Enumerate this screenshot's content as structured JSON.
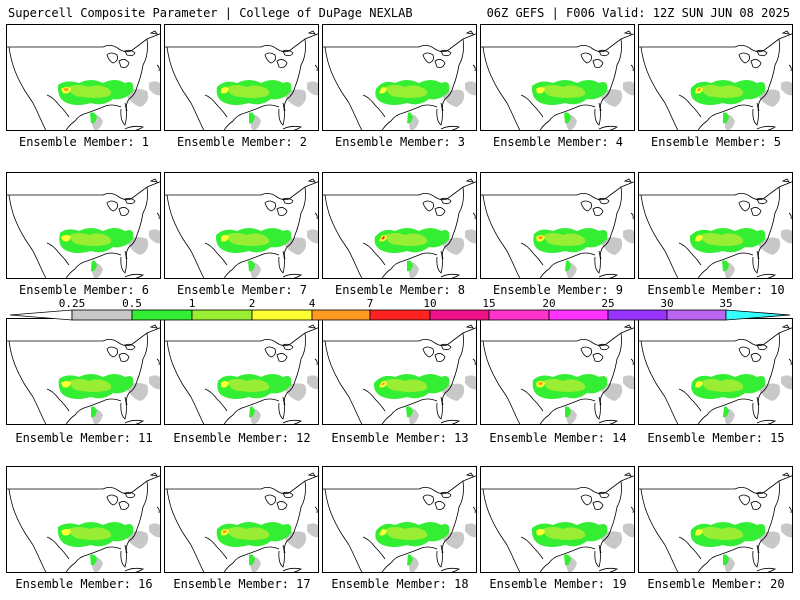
{
  "header": {
    "left": "Supercell Composite Parameter | College of DuPage NEXLAB",
    "right": "06Z GEFS | F006 Valid: 12Z SUN JUN 08 2025"
  },
  "members": [
    "Ensemble Member: 1",
    "Ensemble Member: 2",
    "Ensemble Member: 3",
    "Ensemble Member: 4",
    "Ensemble Member: 5",
    "Ensemble Member: 6",
    "Ensemble Member: 7",
    "Ensemble Member: 8",
    "Ensemble Member: 9",
    "Ensemble Member: 10",
    "Ensemble Member: 11",
    "Ensemble Member: 12",
    "Ensemble Member: 13",
    "Ensemble Member: 14",
    "Ensemble Member: 15",
    "Ensemble Member: 16",
    "Ensemble Member: 17",
    "Ensemble Member: 18",
    "Ensemble Member: 19",
    "Ensemble Member: 20"
  ],
  "colorbar": {
    "ticks": [
      "0.25",
      "0.5",
      "1",
      "2",
      "4",
      "7",
      "10",
      "15",
      "20",
      "25",
      "30",
      "35"
    ],
    "colors": [
      "#c8c8c8",
      "#33ee33",
      "#99ee33",
      "#ffff33",
      "#ff9922",
      "#ff2222",
      "#ee1188",
      "#ff33cc",
      "#ff33ff",
      "#9933ff",
      "#bb66ee"
    ],
    "low_color": "#ffffff",
    "high_color": "#33ffff"
  },
  "map_colors": {
    "gray": "#c8c8c8",
    "green": "#33ee33",
    "lightgreen": "#99ee33",
    "yellow": "#ffff33",
    "orange": "#ff9922",
    "red": "#ff2222"
  }
}
